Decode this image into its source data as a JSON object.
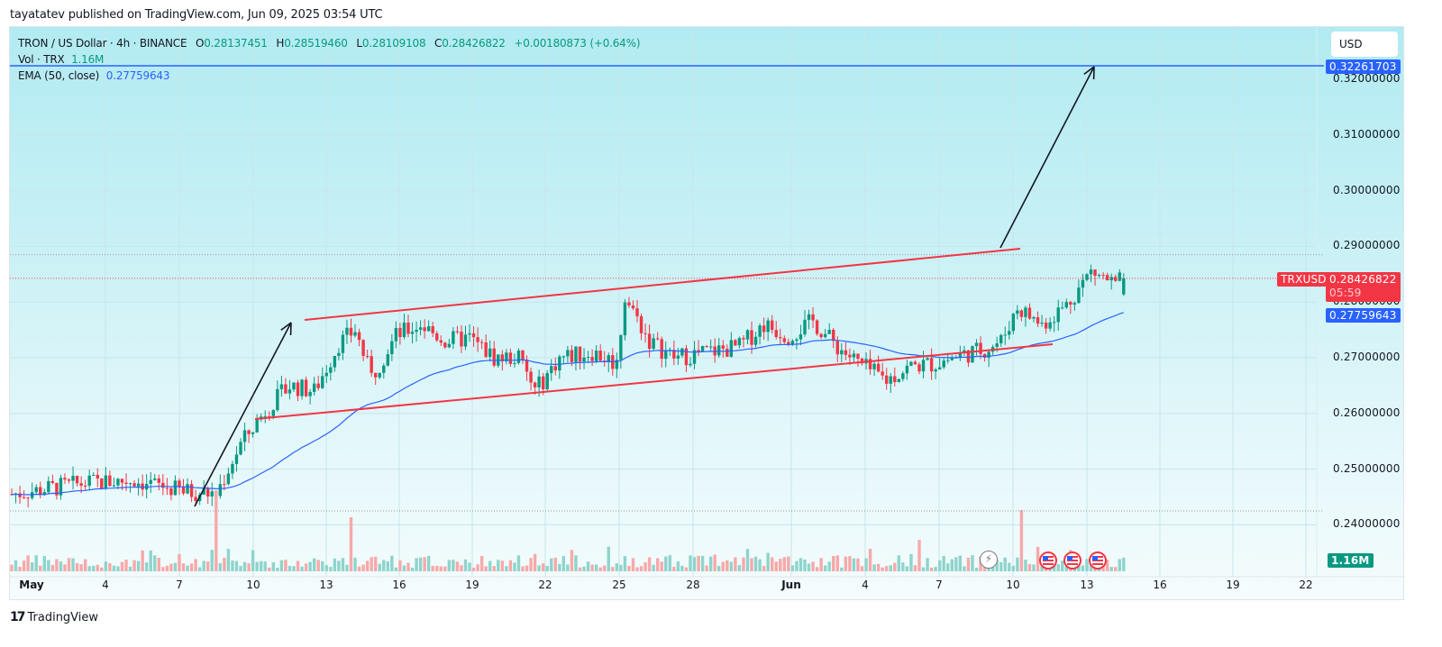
{
  "header": {
    "published": "tayatatev published on TradingView.com, Jun 09, 2025 03:54 UTC"
  },
  "legend": {
    "symbol": "TRON / US Dollar · 4h · BINANCE",
    "o_label": "O",
    "o": "0.28137451",
    "h_label": "H",
    "h": "0.28519460",
    "l_label": "L",
    "l": "0.28109108",
    "c_label": "C",
    "c": "0.28426822",
    "change": "+0.00180873 (+0.64%)",
    "vol_label": "Vol · TRX",
    "vol": "1.16M",
    "ema_label": "EMA (50, close)",
    "ema": "0.27759643"
  },
  "price_axis": {
    "currency_button": "USD",
    "ticks": [
      "0.32000000",
      "0.31000000",
      "0.30000000",
      "0.29000000",
      "0.28000000",
      "0.27000000",
      "0.26000000",
      "0.25000000",
      "0.24000000"
    ],
    "target_tag": "0.32261703",
    "symbol_tag": "TRXUSD",
    "last_price_tag": "0.28426822",
    "countdown": "05:59",
    "ema_tag": "0.27759643",
    "volume_tag": "1.16M"
  },
  "time_axis": {
    "labels": [
      "May",
      "4",
      "7",
      "10",
      "13",
      "16",
      "19",
      "22",
      "25",
      "28",
      "Jun",
      "4",
      "7",
      "10",
      "13",
      "16",
      "19",
      "22"
    ]
  },
  "footer": {
    "brand": "TradingView",
    "logo": "17"
  },
  "colors": {
    "up": "#089981",
    "down": "#f23645",
    "up_vol": "#8fd4cc",
    "down_vol": "#f7a9a9",
    "ema": "#2962ff",
    "channel": "#f23645",
    "target_line": "#2962ff",
    "arrow": "#131722"
  },
  "chart_data": {
    "type": "candlestick",
    "title": "TRON / US Dollar · 4h · BINANCE",
    "data_note": "Candle, volume, and EMA shapes are approximate. Close prices are eye-estimated keypoints along the visible trend and interpolated into candles; they are not exact values read from the chart. Only the legend OHLC, the three price tags, and the axis ticks are read directly from the screenshot.",
    "xlabel": "",
    "ylabel": "USD",
    "ylim": [
      0.2335,
      0.3262
    ],
    "y_ticks": [
      0.24,
      0.25,
      0.26,
      0.27,
      0.28,
      0.29,
      0.3,
      0.31,
      0.32
    ],
    "x_ticks": [
      "May",
      "4",
      "7",
      "10",
      "13",
      "16",
      "19",
      "22",
      "25",
      "28",
      "Jun",
      "4",
      "7",
      "10",
      "13",
      "16",
      "19",
      "22"
    ],
    "grid": true,
    "last": {
      "open": 0.28137451,
      "high": 0.2851946,
      "low": 0.28109108,
      "close": 0.28426822,
      "volume": "1.16M"
    },
    "ema50_last": 0.27759643,
    "target_level": 0.32261703,
    "price_keypoints": [
      [
        0,
        0.2455
      ],
      [
        18,
        0.2475
      ],
      [
        30,
        0.248
      ],
      [
        42,
        0.246
      ],
      [
        50,
        0.2455
      ],
      [
        56,
        0.2545
      ],
      [
        62,
        0.2605
      ],
      [
        68,
        0.265
      ],
      [
        74,
        0.264
      ],
      [
        80,
        0.2725
      ],
      [
        84,
        0.275
      ],
      [
        88,
        0.2665
      ],
      [
        94,
        0.274
      ],
      [
        100,
        0.276
      ],
      [
        106,
        0.273
      ],
      [
        112,
        0.2735
      ],
      [
        118,
        0.27
      ],
      [
        124,
        0.27
      ],
      [
        128,
        0.264
      ],
      [
        134,
        0.27
      ],
      [
        142,
        0.271
      ],
      [
        148,
        0.269
      ],
      [
        150,
        0.281
      ],
      [
        156,
        0.273
      ],
      [
        162,
        0.27
      ],
      [
        170,
        0.271
      ],
      [
        178,
        0.272
      ],
      [
        184,
        0.276
      ],
      [
        190,
        0.274
      ],
      [
        196,
        0.2765
      ],
      [
        202,
        0.272
      ],
      [
        208,
        0.2685
      ],
      [
        214,
        0.266
      ],
      [
        220,
        0.2685
      ],
      [
        226,
        0.269
      ],
      [
        232,
        0.2705
      ],
      [
        238,
        0.2715
      ],
      [
        242,
        0.273
      ],
      [
        246,
        0.279
      ],
      [
        252,
        0.276
      ],
      [
        258,
        0.2795
      ],
      [
        264,
        0.2855
      ],
      [
        268,
        0.284
      ],
      [
        270,
        0.283
      ],
      [
        272,
        0.2843
      ]
    ],
    "channel": {
      "upper": [
        [
          13,
          0.2769
        ],
        [
          18,
          0.2899
        ]
      ],
      "lower": [
        [
          10,
          0.259
        ],
        [
          19,
          0.2721
        ]
      ]
    },
    "annotations": [
      {
        "type": "arrow",
        "from": "May 7 ~0.2436",
        "to": "May 12 ~0.2769"
      },
      {
        "type": "arrow",
        "from": "Jun 9 ~0.2900",
        "to": "Jun 13 ~0.3226"
      },
      {
        "type": "hline",
        "value": 0.32261703
      }
    ]
  }
}
